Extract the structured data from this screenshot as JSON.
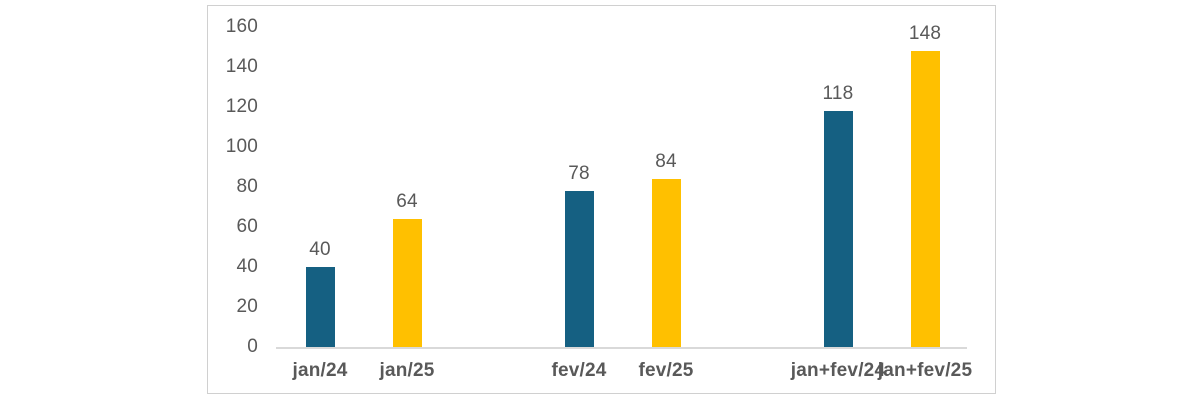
{
  "page": {
    "background_color": "#FFFFFF"
  },
  "chart_panel": {
    "background_color": "#FFFFFF",
    "border_color": "#D0D0D0"
  },
  "chart_data": {
    "type": "bar",
    "title": "",
    "xlabel": "",
    "ylabel": "",
    "categories": [
      "jan/24",
      "jan/25",
      "fev/24",
      "fev/25",
      "jan+fev/24",
      "jan+fev/25"
    ],
    "values": [
      40,
      64,
      78,
      84,
      118,
      148
    ],
    "bar_colors": [
      "#156082",
      "#FFC000",
      "#156082",
      "#FFC000",
      "#156082",
      "#FFC000"
    ],
    "data_labels": [
      "40",
      "64",
      "78",
      "84",
      "118",
      "148"
    ],
    "yticks": [
      "0",
      "20",
      "40",
      "60",
      "80",
      "100",
      "120",
      "140",
      "160"
    ],
    "ytick_values": [
      0,
      20,
      40,
      60,
      80,
      100,
      120,
      140,
      160
    ],
    "ylim": [
      0,
      160
    ],
    "grid": false,
    "legend": "none",
    "colors": {
      "series_2024": "#156082",
      "series_2025": "#FFC000",
      "axis_line": "#D9D9D9",
      "tick_label_text": "#595959",
      "data_label_text": "#595959",
      "category_label_text": "#595959"
    }
  }
}
